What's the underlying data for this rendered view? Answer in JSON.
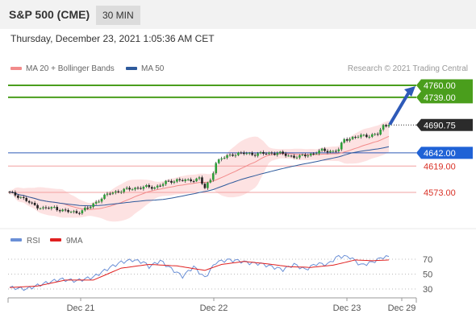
{
  "header": {
    "title": "S&P 500 (CME)",
    "interval": "30 MIN"
  },
  "timestamp": "Thursday, December 23, 2021 1:05:36 AM CET",
  "legend": {
    "items": [
      {
        "label": "MA 20 + Bollinger Bands",
        "color": "#f28b8b"
      },
      {
        "label": "MA 50",
        "color": "#2e5a9c"
      }
    ]
  },
  "credit": "Research © 2021 Trading Central",
  "rsi_legend": {
    "items": [
      {
        "label": "RSI",
        "color": "#6a8fd6"
      },
      {
        "label": "9MA",
        "color": "#e02020"
      }
    ]
  },
  "chart_data": [
    {
      "type": "candlestick",
      "ylim": [
        4510,
        4780
      ],
      "current_price": {
        "label": "4690.75",
        "value": 4690.75
      },
      "levels": [
        {
          "label": "4760.00",
          "value": 4760,
          "kind": "target"
        },
        {
          "label": "4739.00",
          "value": 4739,
          "kind": "target"
        },
        {
          "label": "4642.00",
          "value": 4642,
          "kind": "pivot"
        },
        {
          "label": "4619.00",
          "value": 4619,
          "kind": "support"
        },
        {
          "label": "4573.00",
          "value": 4573,
          "kind": "support"
        }
      ],
      "x_ticks": [
        "Dec 21",
        "Dec 22",
        "Dec 23",
        "Dec 29"
      ],
      "anchors": [
        [
          0,
          4572
        ],
        [
          4,
          4565
        ],
        [
          8,
          4552
        ],
        [
          12,
          4545
        ],
        [
          16,
          4546
        ],
        [
          20,
          4540
        ],
        [
          24,
          4538
        ],
        [
          28,
          4545
        ],
        [
          32,
          4560
        ],
        [
          36,
          4572
        ],
        [
          40,
          4576
        ],
        [
          44,
          4580
        ],
        [
          48,
          4582
        ],
        [
          52,
          4582
        ],
        [
          56,
          4590
        ],
        [
          60,
          4595
        ],
        [
          64,
          4593
        ],
        [
          68,
          4598
        ],
        [
          70,
          4580
        ],
        [
          72,
          4595
        ],
        [
          74,
          4625
        ],
        [
          76,
          4632
        ],
        [
          80,
          4640
        ],
        [
          84,
          4641
        ],
        [
          88,
          4640
        ],
        [
          92,
          4641
        ],
        [
          96,
          4642
        ],
        [
          100,
          4637
        ],
        [
          104,
          4635
        ],
        [
          108,
          4640
        ],
        [
          112,
          4646
        ],
        [
          116,
          4645
        ],
        [
          118,
          4648
        ],
        [
          120,
          4665
        ],
        [
          124,
          4670
        ],
        [
          128,
          4672
        ],
        [
          132,
          4675
        ],
        [
          134,
          4688
        ],
        [
          136,
          4690.75
        ]
      ]
    },
    {
      "type": "line",
      "title": "RSI",
      "ylim": [
        20,
        80
      ],
      "y_ticks": [
        70,
        50,
        30
      ],
      "series": [
        {
          "name": "RSI",
          "anchors": [
            [
              0,
              32
            ],
            [
              6,
              30
            ],
            [
              12,
              37
            ],
            [
              18,
              43
            ],
            [
              24,
              41
            ],
            [
              30,
              46
            ],
            [
              36,
              59
            ],
            [
              40,
              66
            ],
            [
              44,
              69
            ],
            [
              48,
              66
            ],
            [
              50,
              60
            ],
            [
              54,
              68
            ],
            [
              58,
              57
            ],
            [
              62,
              47
            ],
            [
              66,
              60
            ],
            [
              70,
              45
            ],
            [
              74,
              66
            ],
            [
              78,
              69
            ],
            [
              82,
              68
            ],
            [
              86,
              65
            ],
            [
              90,
              64
            ],
            [
              94,
              60
            ],
            [
              98,
              56
            ],
            [
              102,
              63
            ],
            [
              106,
              56
            ],
            [
              110,
              64
            ],
            [
              114,
              63
            ],
            [
              116,
              69
            ],
            [
              118,
              74
            ],
            [
              122,
              73
            ],
            [
              126,
              62
            ],
            [
              130,
              66
            ],
            [
              134,
              73
            ],
            [
              136,
              73
            ]
          ]
        },
        {
          "name": "9MA",
          "anchors": [
            [
              0,
              32
            ],
            [
              10,
              34
            ],
            [
              20,
              42
            ],
            [
              30,
              42
            ],
            [
              40,
              58
            ],
            [
              50,
              63
            ],
            [
              60,
              61
            ],
            [
              70,
              55
            ],
            [
              76,
              63
            ],
            [
              84,
              67
            ],
            [
              92,
              64
            ],
            [
              100,
              60
            ],
            [
              108,
              59
            ],
            [
              116,
              62
            ],
            [
              124,
              69
            ],
            [
              130,
              68
            ],
            [
              136,
              69
            ]
          ]
        }
      ]
    }
  ]
}
